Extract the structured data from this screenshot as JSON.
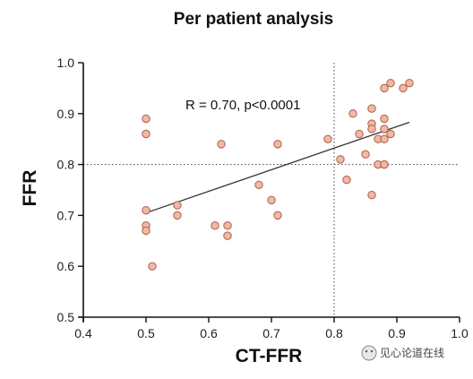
{
  "chart_data": {
    "type": "scatter",
    "title": "Per patient analysis",
    "xlabel": "CT-FFR",
    "ylabel": "FFR",
    "xlim": [
      0.4,
      1.0
    ],
    "ylim": [
      0.5,
      1.0
    ],
    "x_ticks": [
      0.4,
      0.5,
      0.6,
      0.7,
      0.8,
      0.9,
      1.0
    ],
    "y_ticks": [
      0.5,
      0.6,
      0.7,
      0.8,
      0.9,
      1.0
    ],
    "x_tick_labels": [
      "0.4",
      "0.5",
      "0.6",
      "0.7",
      "0.8",
      "0.9",
      "1.0"
    ],
    "y_tick_labels": [
      "0.5",
      "0.6",
      "0.7",
      "0.8",
      "0.9",
      "1.0"
    ],
    "grid": false,
    "annotation": "R = 0.70, p<0.0001",
    "reference_lines": {
      "x": 0.8,
      "y": 0.8,
      "style": "dotted"
    },
    "regression_line": {
      "x": [
        0.5,
        0.92
      ],
      "y": [
        0.705,
        0.883
      ]
    },
    "point_color": "#f2b8a4",
    "point_edge_color": "#b06a55",
    "line_color": "#333333",
    "series": [
      {
        "x": [
          0.5,
          0.5,
          0.5,
          0.5,
          0.5,
          0.51,
          0.55,
          0.55,
          0.61,
          0.62,
          0.63,
          0.63,
          0.68,
          0.7,
          0.71,
          0.71,
          0.79,
          0.81,
          0.82,
          0.83,
          0.84,
          0.85,
          0.86,
          0.86,
          0.86,
          0.86,
          0.87,
          0.87,
          0.88,
          0.88,
          0.88,
          0.88,
          0.88,
          0.88,
          0.89,
          0.89,
          0.91,
          0.92
        ],
        "y": [
          0.89,
          0.86,
          0.71,
          0.68,
          0.67,
          0.6,
          0.72,
          0.7,
          0.68,
          0.84,
          0.68,
          0.66,
          0.76,
          0.73,
          0.84,
          0.7,
          0.85,
          0.81,
          0.77,
          0.9,
          0.86,
          0.82,
          0.91,
          0.88,
          0.87,
          0.74,
          0.85,
          0.8,
          0.95,
          0.89,
          0.87,
          0.85,
          0.8,
          0.8,
          0.96,
          0.86,
          0.95,
          0.96
        ]
      }
    ]
  },
  "watermark": {
    "icon": "wechat-icon",
    "text": "见心论道在线"
  }
}
